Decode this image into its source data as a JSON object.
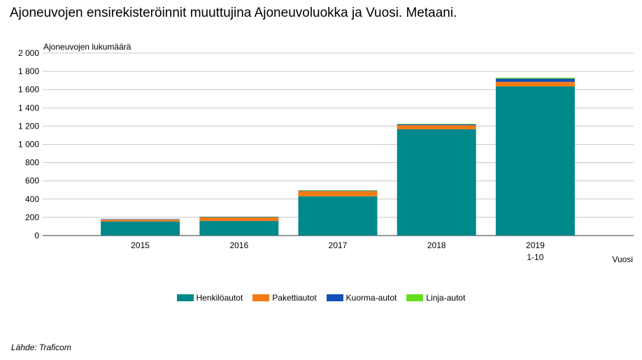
{
  "title": "Ajoneuvojen ensirekisteröinnit muuttujina Ajoneuvoluokka ja Vuosi. Metaani.",
  "source": "Lähde: Traficom",
  "chart_data": {
    "type": "bar",
    "stacked": true,
    "title": "Ajoneuvojen ensirekisteröinnit muuttujina Ajoneuvoluokka ja Vuosi. Metaani.",
    "ylabel": "Ajoneuvojen lukumäärä",
    "xlabel": "Vuosi",
    "categories": [
      "2015",
      "2016",
      "2017",
      "2018",
      "2019\n1-10"
    ],
    "ylim": [
      0,
      2000
    ],
    "yticks": [
      0,
      200,
      400,
      600,
      800,
      1000,
      1200,
      1400,
      1600,
      1800,
      2000
    ],
    "ytick_labels": [
      "0",
      "200",
      "400",
      "600",
      "800",
      "1 000",
      "1 200",
      "1 400",
      "1 600",
      "1 800",
      "2 000"
    ],
    "grid": true,
    "legend_position": "bottom",
    "series": [
      {
        "name": "Henkilöautot",
        "color": "#00898a",
        "values": [
          155,
          160,
          430,
          1165,
          1635
        ]
      },
      {
        "name": "Pakettiautot",
        "color": "#f47a14",
        "values": [
          20,
          40,
          58,
          45,
          50
        ]
      },
      {
        "name": "Kuorma-autot",
        "color": "#1451b8",
        "values": [
          5,
          5,
          5,
          10,
          35
        ]
      },
      {
        "name": "Linja-autot",
        "color": "#66dd1f",
        "values": [
          0,
          3,
          5,
          5,
          10
        ]
      }
    ]
  }
}
